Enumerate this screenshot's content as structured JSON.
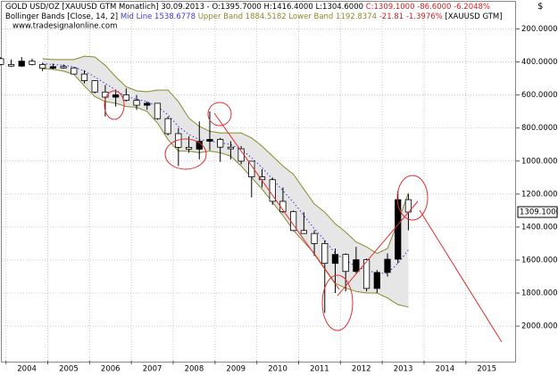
{
  "chart_data": {
    "type": "candlestick",
    "title": "GOLD USD/OZ [XAUUSD GTM  Monatlich] 30.09.2013 - O:1395.7000 H:1416.4000 L:1304.6000",
    "title_change": "C:1309.1000 -86.6000 -6.2048%",
    "indicator": "Bollinger Bands [Close, 14, 2]",
    "indicator_change": "-21.81 -1.3976%",
    "indicator_symbol": "[XAUUSD GTM]",
    "source": "www.tradesignalonline.com",
    "x": [
      2003.875,
      2004.125,
      2004.375,
      2004.625,
      2004.875,
      2005.125,
      2005.375,
      2005.625,
      2005.875,
      2006.125,
      2006.375,
      2006.625,
      2006.875,
      2007.125,
      2007.375,
      2007.625,
      2007.875,
      2008.125,
      2008.375,
      2008.625,
      2008.875,
      2009.125,
      2009.375,
      2009.625,
      2009.875,
      2010.125,
      2010.375,
      2010.625,
      2010.875,
      2011.125,
      2011.375,
      2011.625,
      2011.875,
      2012.125,
      2012.375,
      2012.625,
      2012.875,
      2013.125,
      2013.375,
      2013.625
    ],
    "open": [
      380,
      415,
      425,
      395,
      415,
      438,
      428,
      436,
      473,
      513,
      582,
      613,
      599,
      632,
      662,
      650,
      743,
      834,
      917,
      928,
      880,
      869,
      916,
      926,
      1001,
      1096,
      1113,
      1244,
      1307,
      1421,
      1439,
      1500,
      1620,
      1566,
      1669,
      1598,
      1772,
      1675,
      1595,
      1234
    ],
    "high": [
      420,
      430,
      430,
      420,
      455,
      445,
      440,
      475,
      530,
      590,
      730,
      670,
      640,
      690,
      690,
      750,
      845,
      1030,
      950,
      990,
      935,
      1005,
      990,
      1020,
      1220,
      1160,
      1265,
      1315,
      1425,
      1440,
      1575,
      1920,
      1800,
      1790,
      1680,
      1790,
      1800,
      1700,
      1620,
      1420
    ],
    "low": [
      370,
      385,
      370,
      380,
      405,
      410,
      415,
      430,
      450,
      510,
      540,
      570,
      560,
      600,
      640,
      650,
      730,
      800,
      850,
      760,
      700,
      860,
      880,
      910,
      1000,
      1050,
      1100,
      1160,
      1300,
      1310,
      1420,
      1480,
      1530,
      1560,
      1520,
      1590,
      1660,
      1560,
      1180,
      1200
    ],
    "close": [
      415,
      425,
      395,
      415,
      438,
      428,
      436,
      473,
      513,
      582,
      613,
      599,
      632,
      662,
      650,
      743,
      834,
      917,
      928,
      880,
      869,
      916,
      926,
      1001,
      1096,
      1113,
      1244,
      1307,
      1421,
      1439,
      1500,
      1620,
      1566,
      1669,
      1598,
      1772,
      1675,
      1595,
      1234,
      1309.1
    ],
    "series": [
      {
        "name": "Mid Line",
        "label": "1538.6778",
        "color": "#3a3ad8",
        "dash": true,
        "values": [
          null,
          null,
          null,
          null,
          410,
          415,
          420,
          430,
          455,
          490,
          530,
          570,
          610,
          625,
          640,
          670,
          720,
          790,
          840,
          870,
          880,
          890,
          900,
          930,
          980,
          1040,
          1110,
          1180,
          1250,
          1330,
          1410,
          1480,
          1560,
          1600,
          1640,
          1660,
          1680,
          1680,
          1620,
          1538.6778
        ]
      },
      {
        "name": "Upper Band",
        "label": "1884.5182",
        "color": "#8a8a2a",
        "dash": false,
        "values": [
          null,
          null,
          null,
          null,
          440,
          445,
          455,
          475,
          545,
          610,
          640,
          650,
          670,
          675,
          700,
          770,
          870,
          940,
          940,
          950,
          940,
          950,
          970,
          1030,
          1100,
          1170,
          1250,
          1330,
          1420,
          1490,
          1560,
          1650,
          1740,
          1770,
          1790,
          1800,
          1800,
          1830,
          1870,
          1884.5182
        ]
      },
      {
        "name": "Lower Band",
        "label": "1192.8374",
        "color": "#8a8a2a",
        "dash": false,
        "values": [
          null,
          null,
          null,
          null,
          380,
          385,
          385,
          385,
          365,
          370,
          420,
          490,
          550,
          575,
          580,
          570,
          570,
          640,
          740,
          790,
          820,
          830,
          830,
          830,
          860,
          910,
          970,
          1030,
          1080,
          1170,
          1260,
          1310,
          1380,
          1430,
          1490,
          1520,
          1560,
          1530,
          1370,
          1192.8374
        ]
      }
    ],
    "last_price": {
      "value": 1309.1,
      "label": "1309.1000"
    },
    "xlim": [
      2003.9,
      2016.2
    ],
    "ylim": [
      2210,
      100
    ],
    "xticks": [
      2004,
      2005,
      2006,
      2007,
      2008,
      2009,
      2010,
      2011,
      2012,
      2013,
      2014,
      2015
    ],
    "yticks": [
      {
        "value": 200,
        "label": "200.0000"
      },
      {
        "value": 400,
        "label": "400.0000"
      },
      {
        "value": 600,
        "label": "600.0000"
      },
      {
        "value": 800,
        "label": "800.0000"
      },
      {
        "value": 1000,
        "label": "1000.0000"
      },
      {
        "value": 1200,
        "label": "1200.0000"
      },
      {
        "value": 1400,
        "label": "1400.0000"
      },
      {
        "value": 1600,
        "label": "1600.0000"
      },
      {
        "value": 1800,
        "label": "1800.0000"
      },
      {
        "value": 2000,
        "label": "2000.0000"
      }
    ],
    "grid": true
  }
}
